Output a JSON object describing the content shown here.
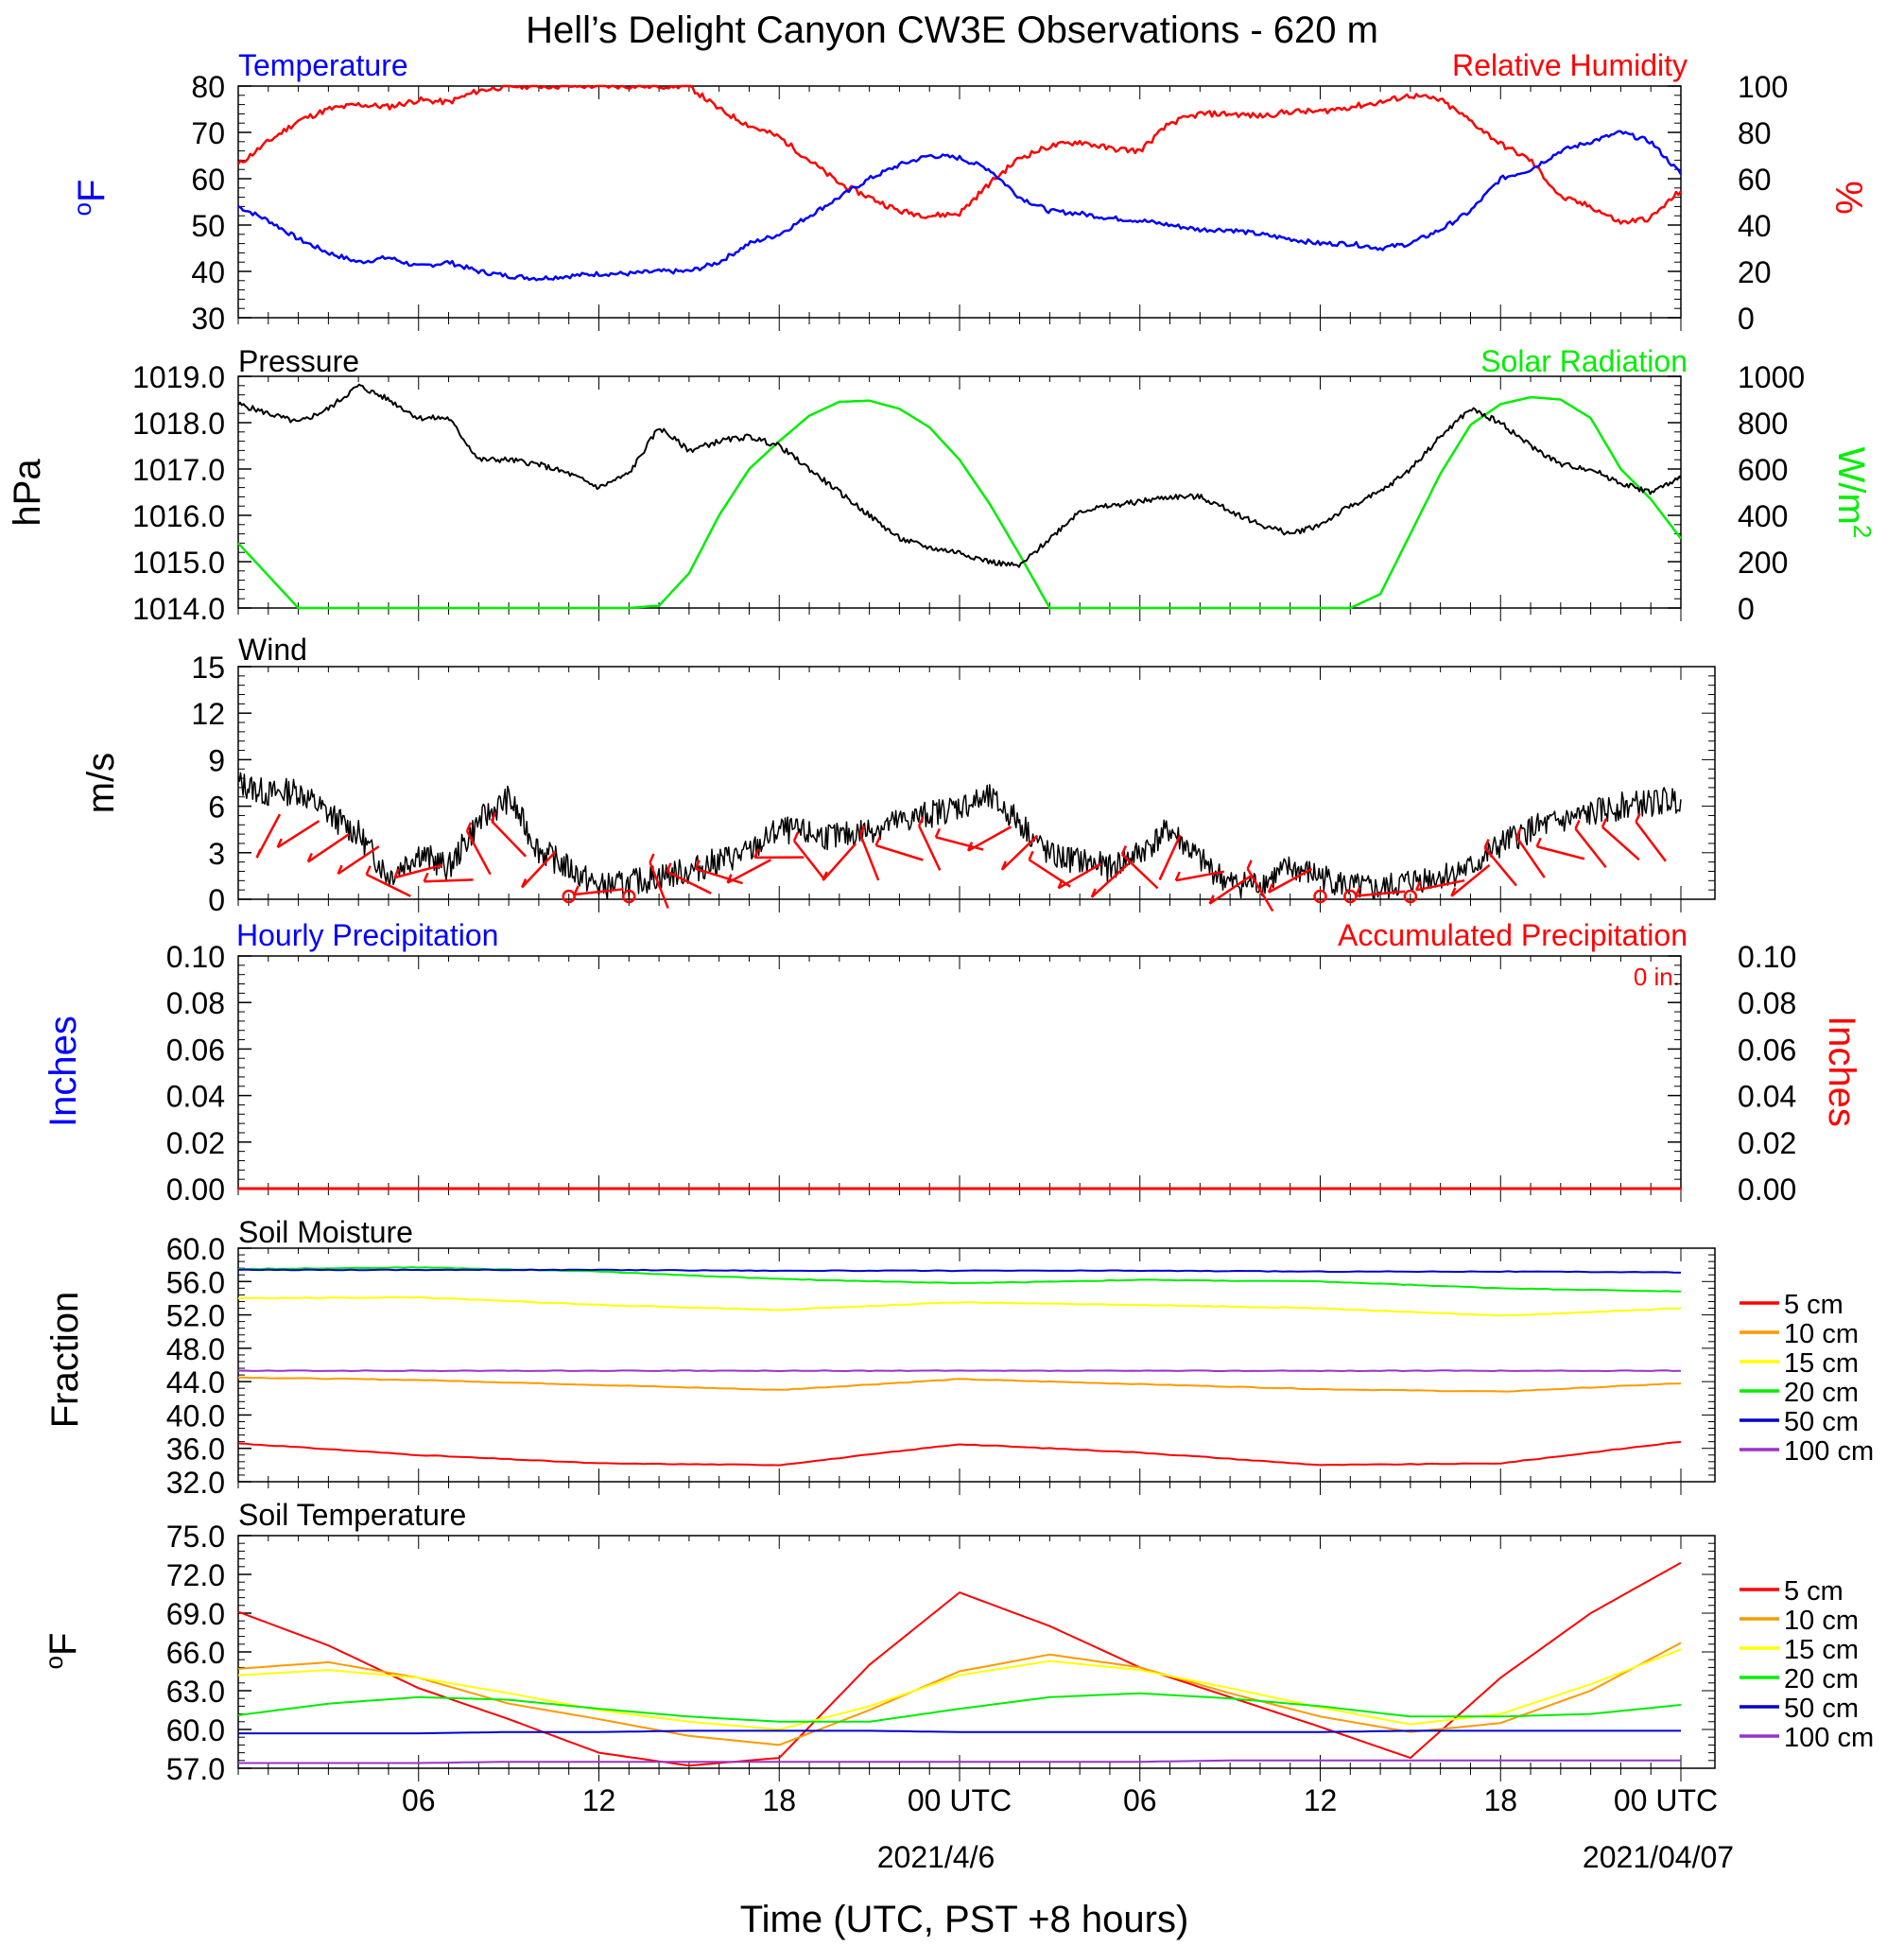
{
  "title": "Hell’s Delight Canyon CW3E Observations - 620 m",
  "x_axis": {
    "label": "Time (UTC, PST +8 hours)",
    "tick_labels": [
      "06",
      "12",
      "18",
      "00 UTC",
      "06",
      "12",
      "18",
      "00 UTC"
    ],
    "date_labels": [
      "2021/4/6",
      "2021/04/07"
    ]
  },
  "colors": {
    "temperature": "#0000ff",
    "humidity": "#ff0000",
    "pressure": "#000000",
    "solar": "#00ee00",
    "wind_barb": "#ff0000",
    "soil_5": "#ff0000",
    "soil_10": "#ff9900",
    "soil_15": "#ffff00",
    "soil_20": "#00ee00",
    "soil_50": "#0000cc",
    "soil_100": "#9933cc"
  },
  "chart_data": [
    {
      "type": "line",
      "panel": "temperature-humidity",
      "left_title": "Temperature",
      "right_title": "Relative Humidity",
      "left_axis_label": "oF",
      "right_axis_label": "%",
      "left_ylim": [
        30,
        80
      ],
      "left_ticks": [
        "80",
        "70",
        "60",
        "50",
        "40",
        "30"
      ],
      "right_ylim": [
        0,
        100
      ],
      "right_ticks": [
        "100",
        "80",
        "60",
        "40",
        "20",
        "0"
      ],
      "x": [
        0,
        1,
        2,
        3,
        4,
        5,
        6,
        7,
        8,
        9,
        10,
        11,
        12,
        13,
        14,
        15,
        16,
        17,
        18,
        19,
        20,
        21,
        22,
        23,
        24,
        25,
        26,
        27,
        28,
        29,
        30,
        31,
        32,
        33,
        34,
        35,
        36,
        37,
        38,
        39,
        40,
        41,
        42,
        43,
        44,
        45,
        46,
        47,
        48
      ],
      "series": [
        {
          "name": "Temperature",
          "axis": "left",
          "values": [
            54,
            51,
            47,
            44,
            42,
            43,
            41,
            42,
            40,
            39,
            38.5,
            39,
            39.5,
            39.5,
            40,
            40,
            42,
            46,
            48,
            52,
            56,
            60,
            63,
            65,
            64.5,
            62,
            56,
            53,
            52.5,
            51.5,
            51,
            50,
            49,
            49,
            48,
            47,
            46,
            46,
            45,
            46,
            49,
            53,
            60,
            62,
            66,
            68,
            70,
            68,
            61
          ]
        },
        {
          "name": "Relative Humidity",
          "axis": "right",
          "values": [
            66,
            76,
            85,
            90,
            92,
            91,
            94,
            93,
            98,
            100,
            100,
            100,
            100,
            100,
            100,
            100,
            90,
            83,
            78,
            68,
            58,
            52,
            46,
            44,
            45,
            58,
            69,
            74,
            76,
            73,
            72,
            84,
            88,
            88,
            87,
            89,
            89,
            91,
            93,
            96,
            94,
            85,
            75,
            68,
            52,
            48,
            41,
            43,
            55
          ]
        }
      ]
    },
    {
      "type": "line",
      "panel": "pressure-solar",
      "left_title": "Pressure",
      "right_title": "Solar Radiation",
      "left_axis_label": "hPa",
      "right_axis_label": "W/m2",
      "left_ylim": [
        1014.0,
        1019.0
      ],
      "left_ticks": [
        "1019.0",
        "1018.0",
        "1017.0",
        "1016.0",
        "1015.0",
        "1014.0"
      ],
      "right_ylim": [
        0,
        1000
      ],
      "right_ticks": [
        "1000",
        "800",
        "600",
        "400",
        "200",
        "0"
      ],
      "x": [
        0,
        1,
        2,
        3,
        4,
        5,
        6,
        7,
        8,
        9,
        10,
        11,
        12,
        13,
        14,
        15,
        16,
        17,
        18,
        19,
        20,
        21,
        22,
        23,
        24,
        25,
        26,
        27,
        28,
        29,
        30,
        31,
        32,
        33,
        34,
        35,
        36,
        37,
        38,
        39,
        40,
        41,
        42,
        43,
        44,
        45,
        46,
        47,
        48
      ],
      "series": [
        {
          "name": "Pressure",
          "axis": "left",
          "values": [
            1018.4,
            1018.2,
            1018.0,
            1018.3,
            1018.8,
            1018.5,
            1018.1,
            1018.1,
            1017.2,
            1017.2,
            1017.1,
            1016.9,
            1016.6,
            1016.9,
            1017.9,
            1017.4,
            1017.6,
            1017.7,
            1017.5,
            1017.0,
            1016.5,
            1016.0,
            1015.5,
            1015.3,
            1015.2,
            1015.0,
            1014.9,
            1015.5,
            1016.1,
            1016.2,
            1016.3,
            1016.4,
            1016.4,
            1016.1,
            1015.8,
            1015.6,
            1015.8,
            1016.2,
            1016.5,
            1017.0,
            1017.7,
            1018.3,
            1018.0,
            1017.5,
            1017.1,
            1017.0,
            1016.7,
            1016.5,
            1016.8
          ]
        },
        {
          "name": "Solar Radiation",
          "axis": "right",
          "values": [
            280,
            140,
            0,
            0,
            0,
            0,
            0,
            0,
            0,
            0,
            0,
            0,
            0,
            0,
            10,
            150,
            400,
            600,
            720,
            830,
            890,
            895,
            860,
            780,
            640,
            450,
            230,
            0,
            0,
            0,
            0,
            0,
            0,
            0,
            0,
            0,
            0,
            0,
            60,
            320,
            580,
            790,
            880,
            910,
            900,
            820,
            600,
            470,
            300
          ]
        }
      ]
    },
    {
      "type": "line",
      "panel": "wind",
      "left_title": "Wind",
      "left_axis_label": "m/s",
      "left_ylim": [
        0,
        15
      ],
      "left_ticks": [
        "15",
        "12",
        "9",
        "6",
        "3",
        "0"
      ],
      "x": [
        0,
        1,
        2,
        3,
        4,
        5,
        6,
        7,
        8,
        9,
        10,
        11,
        12,
        13,
        14,
        15,
        16,
        17,
        18,
        19,
        20,
        21,
        22,
        23,
        24,
        25,
        26,
        27,
        28,
        29,
        30,
        31,
        32,
        33,
        34,
        35,
        36,
        37,
        38,
        39,
        40,
        41,
        42,
        43,
        44,
        45,
        46,
        47,
        48
      ],
      "series": [
        {
          "name": "Wind speed",
          "values": [
            7.5,
            6.8,
            7.0,
            5.5,
            4.2,
            1.5,
            3.0,
            2.0,
            5.0,
            6.5,
            3.2,
            2.0,
            0.8,
            1.0,
            1.5,
            1.8,
            2.5,
            3.0,
            4.5,
            4.2,
            4.0,
            4.5,
            5.0,
            5.5,
            6.0,
            6.5,
            5.0,
            2.8,
            2.5,
            2.0,
            3.0,
            4.5,
            2.5,
            1.0,
            1.0,
            2.0,
            1.5,
            0.8,
            0.6,
            1.2,
            1.5,
            2.0,
            3.5,
            4.5,
            5.0,
            5.5,
            6.0,
            6.2,
            6.5
          ]
        }
      ],
      "calm_markers_hour": [
        11,
        13,
        36,
        37,
        39
      ]
    },
    {
      "type": "line",
      "panel": "precipitation",
      "left_title": "Hourly Precipitation",
      "right_title": "Accumulated Precipitation",
      "total_label": "0 in.",
      "left_axis_label": "Inches",
      "right_axis_label": "Inches",
      "left_ylim": [
        0,
        0.1
      ],
      "left_ticks": [
        "0.10",
        "0.08",
        "0.06",
        "0.04",
        "0.02",
        "0.00"
      ],
      "right_ylim": [
        0,
        0.1
      ],
      "right_ticks": [
        "0.10",
        "0.08",
        "0.06",
        "0.04",
        "0.02",
        "0.00"
      ],
      "series": [
        {
          "name": "Hourly Precipitation",
          "values": [
            0,
            0
          ]
        },
        {
          "name": "Accumulated Precipitation",
          "values": [
            0,
            0
          ]
        }
      ]
    },
    {
      "type": "line",
      "panel": "soil-moisture",
      "left_title": "Soil Moisture",
      "left_axis_label": "Fraction",
      "left_ylim": [
        32.0,
        60.0
      ],
      "left_ticks": [
        "60.0",
        "56.0",
        "52.0",
        "48.0",
        "44.0",
        "40.0",
        "36.0",
        "32.0"
      ],
      "x": [
        0,
        6,
        12,
        18,
        24,
        30,
        36,
        42,
        48
      ],
      "series": [
        {
          "name": "5 cm",
          "values": [
            36.6,
            35.2,
            34.2,
            34.0,
            36.5,
            35.5,
            34.0,
            34.2,
            36.8
          ]
        },
        {
          "name": "10 cm",
          "values": [
            44.5,
            44.2,
            43.6,
            43.0,
            44.3,
            43.7,
            43.1,
            42.8,
            43.8
          ]
        },
        {
          "name": "15 cm",
          "values": [
            54.0,
            54.1,
            53.2,
            52.6,
            53.5,
            53.2,
            52.8,
            51.9,
            52.8
          ]
        },
        {
          "name": "20 cm",
          "values": [
            57.5,
            57.7,
            57.2,
            56.3,
            55.8,
            56.2,
            56.0,
            55.2,
            54.8
          ]
        },
        {
          "name": "50 cm",
          "values": [
            57.4,
            57.4,
            57.4,
            57.3,
            57.3,
            57.3,
            57.2,
            57.2,
            57.1
          ]
        },
        {
          "name": "100 cm",
          "values": [
            45.3,
            45.3,
            45.3,
            45.3,
            45.3,
            45.3,
            45.3,
            45.3,
            45.3
          ]
        }
      ]
    },
    {
      "type": "line",
      "panel": "soil-temperature",
      "left_title": "Soil Temperature",
      "left_axis_label": "oF",
      "left_ylim": [
        57.0,
        75.0
      ],
      "left_ticks": [
        "75.0",
        "72.0",
        "69.0",
        "66.0",
        "63.0",
        "60.0",
        "57.0"
      ],
      "x": [
        0,
        3,
        6,
        9,
        12,
        15,
        18,
        21,
        24,
        27,
        30,
        33,
        36,
        39,
        42,
        45,
        48
      ],
      "series": [
        {
          "name": "5 cm",
          "values": [
            69.1,
            66.5,
            63.2,
            60.8,
            58.2,
            57.2,
            57.8,
            65.0,
            70.6,
            68.0,
            64.8,
            62.5,
            60.2,
            57.8,
            64.0,
            69.0,
            72.9
          ]
        },
        {
          "name": "10 cm",
          "values": [
            64.7,
            65.2,
            64.0,
            62.0,
            60.8,
            59.5,
            58.8,
            61.5,
            64.5,
            65.8,
            64.8,
            62.8,
            61.0,
            59.8,
            60.5,
            63.0,
            66.7
          ]
        },
        {
          "name": "15 cm",
          "values": [
            64.2,
            64.6,
            64.0,
            62.8,
            61.5,
            60.6,
            60.0,
            61.8,
            64.2,
            65.3,
            64.6,
            63.2,
            61.7,
            60.4,
            61.2,
            63.5,
            66.2
          ]
        },
        {
          "name": "20 cm",
          "values": [
            61.1,
            62.0,
            62.5,
            62.3,
            61.6,
            61.0,
            60.6,
            60.6,
            61.6,
            62.5,
            62.8,
            62.4,
            61.8,
            61.0,
            61.0,
            61.2,
            61.9
          ]
        },
        {
          "name": "50 cm",
          "values": [
            59.7,
            59.7,
            59.7,
            59.8,
            59.8,
            59.9,
            59.9,
            59.9,
            59.8,
            59.8,
            59.8,
            59.8,
            59.8,
            59.9,
            59.9,
            59.9,
            59.9
          ]
        },
        {
          "name": "100 cm",
          "values": [
            57.4,
            57.4,
            57.4,
            57.5,
            57.5,
            57.5,
            57.5,
            57.5,
            57.5,
            57.5,
            57.5,
            57.6,
            57.6,
            57.6,
            57.6,
            57.6,
            57.6
          ]
        }
      ]
    }
  ]
}
